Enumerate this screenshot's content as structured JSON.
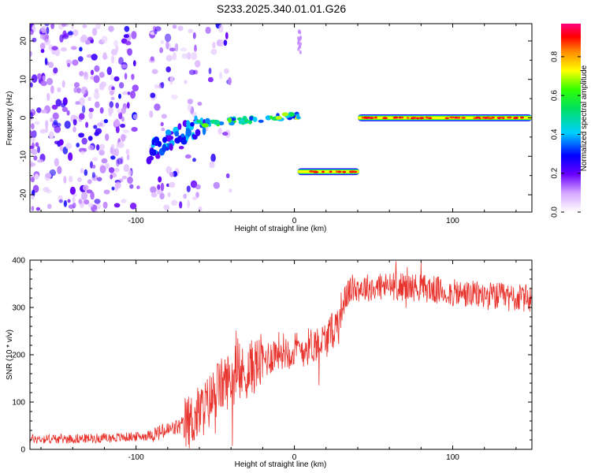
{
  "title": "S233.2025.340.01.01.G26",
  "chart_data": [
    {
      "type": "heatmap",
      "xlabel": "Height of straight line (km)",
      "ylabel": "Frequency (Hz)",
      "xlim": [
        -167,
        150
      ],
      "ylim": [
        -24.5,
        24.5
      ],
      "xticks": [
        -100,
        0,
        100
      ],
      "yticks": [
        -20,
        -10,
        0,
        10,
        20
      ],
      "colorbar": {
        "label": "Normalized spectral amplitude",
        "range": [
          0,
          0.97
        ],
        "ticks": [
          0.0,
          0.2,
          0.4,
          0.6,
          0.8
        ]
      },
      "segments": [
        {
          "x_start": -62,
          "x_end": 3,
          "freq_start": 0.5,
          "freq_end": 0.5,
          "note": "weak rising trace"
        },
        {
          "x_start": 2,
          "x_end": 41,
          "freq": -14,
          "peak_amplitude": 0.95
        },
        {
          "x_start": 40,
          "x_end": 150,
          "freq": 0,
          "peak_amplitude": 0.95
        }
      ]
    },
    {
      "type": "line",
      "xlabel": "Height of straight line (km)",
      "ylabel": "SNR (10 * v/v)",
      "xlim": [
        -167,
        150
      ],
      "ylim": [
        0,
        400
      ],
      "xticks": [
        -100,
        0,
        100
      ],
      "yticks": [
        0,
        100,
        200,
        300,
        400
      ],
      "series": [
        {
          "name": "SNR",
          "color": "#e8322c",
          "x": [
            -167,
            -150,
            -130,
            -110,
            -95,
            -85,
            -75,
            -65,
            -55,
            -48,
            -40,
            -32,
            -25,
            -18,
            -10,
            -2,
            5,
            12,
            20,
            26,
            30,
            33,
            36,
            45,
            60,
            80,
            100,
            120,
            140,
            150
          ],
          "y": [
            22,
            22,
            23,
            25,
            28,
            35,
            45,
            60,
            95,
            130,
            150,
            160,
            178,
            190,
            210,
            208,
            212,
            222,
            232,
            260,
            300,
            325,
            340,
            342,
            345,
            342,
            330,
            325,
            320,
            318
          ]
        }
      ]
    }
  ]
}
